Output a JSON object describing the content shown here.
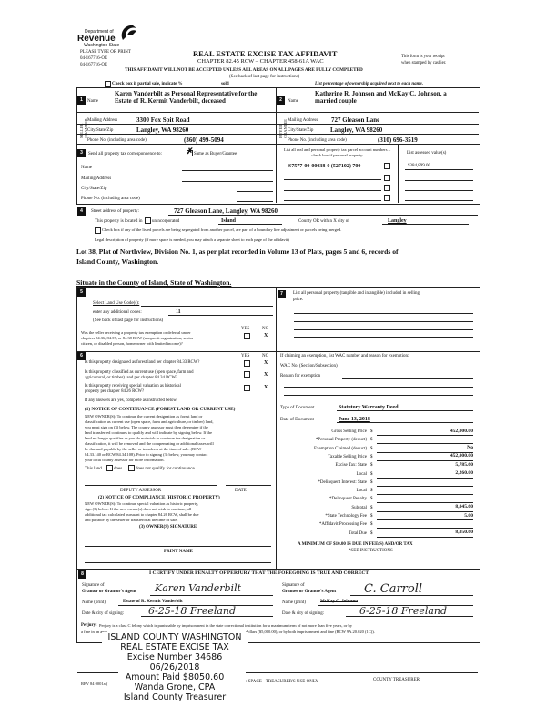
{
  "header": {
    "logo_dept": "Department of",
    "logo_name": "Revenue",
    "logo_state": "Washington State",
    "please": "PLEASE TYPE OR PRINT",
    "ref1": "04-167716-OE",
    "ref2": "04-167716-OE",
    "title": "REAL ESTATE EXCISE TAX AFFIDAVIT",
    "chapter": "CHAPTER 82.45 RCW – CHAPTER 458-61A WAC",
    "receipt1": "This form is your receipt",
    "receipt2": "when stamped by cashier.",
    "warning": "THIS AFFIDAVIT WILL NOT BE ACCEPTED UNLESS ALL AREAS ON ALL PAGES ARE FULLY COMPLETED",
    "see_back": "(See back of last page for instructions)",
    "partial_sale": "Check box if partial sale, indicate %",
    "sold": "sold",
    "list_pct": "List percentage of ownership acquired next to each name."
  },
  "seller": {
    "num": "1",
    "side": "SELLER GRANTOR",
    "name_label": "Name",
    "name1": "Karen Vanderbilt as Personal Representative for the",
    "name2": "Estate of  R. Kermit Vanderbilt, deceased",
    "mail_label": "Mailing Address",
    "mail": "3300 Fox Spit Road",
    "city_label": "City/State/Zip",
    "city": "Langley, WA 98260",
    "phone_label": "Phone No. (including area code)",
    "phone": "(360) 499-5094"
  },
  "buyer": {
    "num": "2",
    "side": "BUYER GRANTEE",
    "name_label": "Name",
    "name1": "Katherine R. Johnson and McKay C. Johnson, a",
    "name2": "married couple",
    "mail_label": "Mailing Address",
    "mail": "727 Gleason Lane",
    "city_label": "City/State/Zip",
    "city": "Langley, WA 98260",
    "phone_label": "Phone No. (including area code)",
    "phone": "(310) 696-3519"
  },
  "sec3": {
    "num": "3",
    "send": "Send all property tax correspondence to:",
    "same": "Same as Buyer/Grantee",
    "same_checked": true,
    "name": "Name",
    "mail": "Mailing Address",
    "city": "City/State/Zip",
    "phone": "Phone No. (including area code)",
    "parcel_hdr": "List all real and personal property tax parcel account numbers – check box if personal property",
    "parcel": "S7577-00-00038-0 (527102) 700",
    "assessed_hdr": "List assessed value(s)",
    "assessed": "$384,899.00"
  },
  "sec4": {
    "num": "4",
    "street_label": "Street address of property:",
    "street": "727 Gleason Lane, Langley, WA  98260",
    "located": "This property is located in",
    "unincorp": "unincorporated",
    "county": "Island",
    "county_or": "County OR  within X city of",
    "city": "Langley",
    "segregated": "Check box if any of the listed parcels are being segregated from another parcel, are part of a boundary line adjustment or parcels being merged.",
    "legal_label": "Legal description of property (if more space is needed, you may attach a separate sheet to each page of the affidavit)",
    "legal1": "Lot 38,  Plat of Northview, Division No. 1, as per plat recorded in Volume 13 of Plats, pages 5 and 6, records of",
    "legal2": "Island County, Washington.",
    "situate": "Situate in the County of Island, State of Washington."
  },
  "sec5": {
    "num": "5",
    "select": "Select Land Use Code(s):",
    "additional": "enter any additional codes:",
    "code": "11",
    "see_back": "(See back of last page for instructions)",
    "yes": "YES",
    "no": "NO",
    "q1a": "Was the seller receiving a property tax exemption or deferral under",
    "q1b": "chapters 84.36, 84.37, or 84.38 RCW (nonprofit organization, senior",
    "q1c": "citizen, or disabled person, homeowner with limited income)?",
    "a1": "X"
  },
  "sec6": {
    "num": "6",
    "yes": "YES",
    "no": "NO",
    "q1": "Is this property designated as forest land per chapter 84.33 RCW?",
    "q2a": "Is this property classified as current use (open space, farm and",
    "q2b": "agricultural, or timber) land per chapter 84.34 RCW?",
    "q3a": "Is this property receiving special valuation as historical",
    "q3b": "property per chapter 84.26 RCW?",
    "a": "X",
    "if_yes": "If any answers are yes, complete as instructed below.",
    "n1_title": "(1) NOTICE OF CONTINUANCE (FOREST LAND OR CURRENT USE)",
    "n1_lines": [
      "NEW OWNER(S): To continue the current designation as forest land or",
      "classification as current use (open space, farm and agriculture, or timber) land,",
      "you must sign on (3) below.  The county assessor must then determine if the",
      "land transferred continues to qualify and will indicate by signing below.  If the",
      "land no longer qualifies or you do not wish to continue the designation or",
      "classification, it will be removed and the compensating or additional taxes will",
      "be due and payable by the seller or transferor at the time of sale.  (RCW",
      "84.33.140 or RCW 84.34.108). Prior to signing (3) below, you may contact",
      "your local county assessor for more information."
    ],
    "this_land": "This land",
    "does": "does",
    "does_not": "does not qualify for continuance.",
    "deputy": "DEPUTY ASSESSOR",
    "date": "DATE",
    "n2_title": "(2) NOTICE OF COMPLIANCE (HISTORIC PROPERTY)",
    "n2_lines": [
      "NEW OWNER(S):  To continue special valuation as historic property,",
      "sign (3) below.  If the new owner(s) does not wish to continue, all",
      "additional tax calculated pursuant to chapter 84.26 RCW, shall be due",
      "and payable by the seller or transferor at the time of sale."
    ],
    "owner_sig": "(3)  OWNER(S) SIGNATURE",
    "print_name": "PRINT NAME"
  },
  "sec7": {
    "num": "7",
    "list1": "List all personal property (tangible and intangible) included in selling",
    "list2": "price.",
    "exemption": "If claiming an exemption, list WAC number and reason for exemption:",
    "wac": "WAC No. (Section/Subsection)",
    "reason": "Reason for exemption",
    "doc_type_label": "Type of Document",
    "doc_type": "Statutory Warranty Deed",
    "doc_date_label": "Date of Document",
    "doc_date": "June 13, 2018",
    "rows": [
      {
        "label": "Gross Selling Price",
        "value": "452,000.00"
      },
      {
        "label": "*Personal Property (deduct)",
        "value": ""
      },
      {
        "label": "Exemption Claimed (deduct)",
        "value": "No"
      },
      {
        "label": "Taxable Selling Price",
        "value": "452,000.00"
      },
      {
        "label": "Excise Tax:  State",
        "value": "5,785.60"
      },
      {
        "label": "Local",
        "value": "2,260.00"
      },
      {
        "label": "*Delinquent Interest:  State",
        "value": ""
      },
      {
        "label": "Local",
        "value": ""
      },
      {
        "label": "*Delinquent Penalty",
        "value": ""
      },
      {
        "label": "Subtotal",
        "value": "8,045.60"
      },
      {
        "label": "*State Technology Fee",
        "value": "5.00"
      },
      {
        "label": "*Affidavit Processing Fee",
        "value": ""
      },
      {
        "label": "Total Due",
        "value": "8,050.60"
      }
    ],
    "dollar": "$",
    "minimum": "A MINIMUM OF $10.00 IS DUE IN FEE(S) AND/OR TAX",
    "see_instr": "*SEE INSTRUCTIONS"
  },
  "sec8": {
    "num": "8",
    "certify": "I CERTIFY UNDER PENALTY OF PERJURY THAT THE FOREGOING IS TRUE AND CORRECT.",
    "sig_of": "Signature of",
    "grantor_agent": "Grantor or Grantor's Agent",
    "grantor_sig": "Karen Vanderbilt",
    "name_print": "Name (print)",
    "grantor_name": "Estate of R. Kermit Vanderbilt",
    "date_city": "Date & city of signing:",
    "grantor_date": "6-25-18  Freeland",
    "grantee_agent": "Grantee or Grantee's Agent",
    "grantee_sig": "C. Carroll",
    "grantee_name": "McKay C. Johnson",
    "grantee_date": "6-25-18  Freeland",
    "perjury_label": "Perjury:",
    "perjury1": "Perjury is a class C felony which is punishable by imprisonment in the state correctional institution for a maximum term of not more than five years, or by",
    "perjury2a": "a fine in an amo",
    "perjury2b": "dollars ($5,000.00), or by both imprisonment and fine (RCW 9A.20.020 (1C))."
  },
  "stamp": {
    "l1": "ISLAND COUNTY WASHINGTON",
    "l2": "REAL ESTATE EXCISE TAX",
    "l3": "Excise Number 34686",
    "l4": "06/26/2018",
    "l5": "Amount Paid $8050.60",
    "l6": "Wanda Grone, CPA",
    "l7": "Island County Treasurer"
  },
  "footer": {
    "rev": "REV 84 0001a (",
    "treasurer_use": ": SPACE - TREASURER'S USE ONLY",
    "county_treasurer": "COUNTY TREASURER"
  }
}
